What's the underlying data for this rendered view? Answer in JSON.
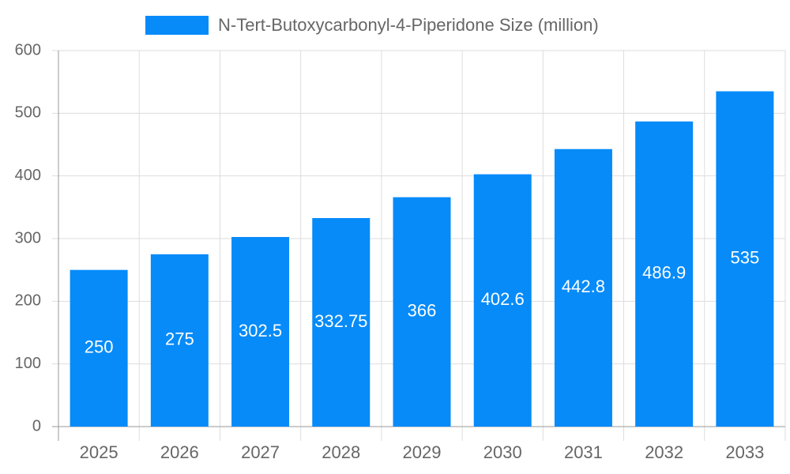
{
  "chart_data": {
    "type": "bar",
    "categories": [
      "2025",
      "2026",
      "2027",
      "2028",
      "2029",
      "2030",
      "2031",
      "2032",
      "2033"
    ],
    "series": [
      {
        "name": "N-Tert-Butoxycarbonyl-4-Piperidone Size (million)",
        "color": "#068bf9",
        "values": [
          250,
          275,
          302.5,
          332.75,
          366,
          402.6,
          442.8,
          486.9,
          535
        ]
      }
    ],
    "ylim": [
      0,
      600
    ],
    "yticks": [
      0,
      100,
      200,
      300,
      400,
      500,
      600
    ],
    "grid": true,
    "legend": "top"
  }
}
